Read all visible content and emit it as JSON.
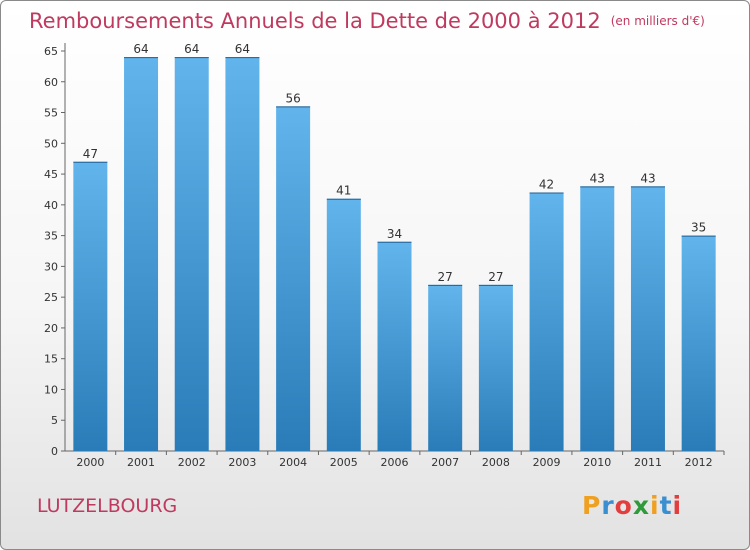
{
  "chart_data": {
    "type": "bar",
    "title": "Remboursements Annuels de la Dette de 2000 à 2012",
    "unit": "(en milliers d'€)",
    "categories": [
      "2000",
      "2001",
      "2002",
      "2003",
      "2004",
      "2005",
      "2006",
      "2007",
      "2008",
      "2009",
      "2010",
      "2011",
      "2012"
    ],
    "values": [
      47,
      64,
      64,
      64,
      56,
      41,
      34,
      27,
      27,
      42,
      43,
      43,
      35
    ],
    "ylim": [
      0,
      65
    ],
    "yticks": [
      0,
      5,
      10,
      15,
      20,
      25,
      30,
      35,
      40,
      45,
      50,
      55,
      60,
      65
    ],
    "grid": false,
    "bar_color_top": "#62b4ec",
    "bar_color_bottom": "#2a7cb8"
  },
  "city": "LUTZELBOURG",
  "logo": {
    "letters": [
      "P",
      "r",
      "o",
      "x",
      "i",
      "t",
      "i"
    ],
    "colors": [
      "#f0a020",
      "#3a8fd0",
      "#e23e3e",
      "#2f9a3a",
      "#f0a020",
      "#3a8fd0",
      "#e23e3e"
    ]
  }
}
